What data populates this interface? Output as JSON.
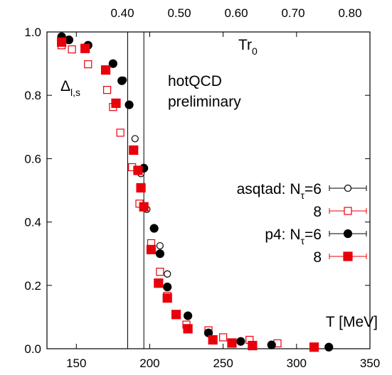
{
  "chart_data": {
    "type": "scatter",
    "xlim": [
      130,
      350
    ],
    "ylim": [
      0,
      1.0
    ],
    "x_ticks": [
      "150",
      "200",
      "250",
      "300",
      "350"
    ],
    "y_ticks": [
      "0.0",
      "0.2",
      "0.4",
      "0.6",
      "0.8",
      "1.0"
    ],
    "top_ticks": [
      "0.40",
      "0.50",
      "0.60",
      "0.70",
      "0.80"
    ],
    "top_axis_label": {
      "main": "Tr",
      "sub": "0"
    },
    "ylabel": {
      "main": "Δ",
      "sub": "l,s"
    },
    "xlabel": "T [MeV]",
    "annotation": [
      "hotQCD",
      "preliminary"
    ],
    "vertical_lines": [
      185,
      196
    ],
    "colors": {
      "black": "#000000",
      "red": "#e8000b"
    },
    "legend": {
      "position": "center-right",
      "entries": [
        {
          "prefix": "asqtad: N",
          "sub": "τ",
          "suffix": "=6"
        },
        {
          "prefix": "8",
          "sub": "",
          "suffix": ""
        },
        {
          "prefix": "p4: N",
          "sub": "τ",
          "suffix": "=6"
        },
        {
          "prefix": "8",
          "sub": "",
          "suffix": ""
        }
      ]
    },
    "series": [
      {
        "marker": "open-circle",
        "points": [
          [
            140,
            0.98
          ],
          [
            182,
            0.848
          ],
          [
            190,
            0.663
          ],
          [
            194,
            0.553
          ],
          [
            198,
            0.44
          ],
          [
            207,
            0.325
          ],
          [
            212,
            0.236
          ]
        ]
      },
      {
        "marker": "open-square",
        "points": [
          [
            140,
            0.958
          ],
          [
            147,
            0.945
          ],
          [
            158,
            0.898
          ],
          [
            171,
            0.817
          ],
          [
            175,
            0.763
          ],
          [
            180,
            0.682
          ],
          [
            188,
            0.573
          ],
          [
            193,
            0.458
          ],
          [
            201,
            0.333
          ],
          [
            207,
            0.243
          ],
          [
            212,
            0.167
          ],
          [
            225,
            0.076
          ],
          [
            240,
            0.058
          ],
          [
            250,
            0.036
          ],
          [
            268,
            0.028
          ],
          [
            287,
            0.017
          ]
        ]
      },
      {
        "marker": "filled-circle",
        "points": [
          [
            140,
            0.985
          ],
          [
            145,
            0.975
          ],
          [
            158,
            0.958
          ],
          [
            175,
            0.9
          ],
          [
            181,
            0.846
          ],
          [
            186,
            0.77
          ],
          [
            196,
            0.57
          ],
          [
            203,
            0.38
          ],
          [
            207,
            0.3
          ],
          [
            212,
            0.195
          ],
          [
            226,
            0.104
          ],
          [
            240,
            0.05
          ],
          [
            262,
            0.023
          ],
          [
            283,
            0.012
          ],
          [
            322,
            0.005
          ]
        ]
      },
      {
        "marker": "filled-square",
        "points": [
          [
            140,
            0.968
          ],
          [
            156,
            0.948
          ],
          [
            170,
            0.88
          ],
          [
            177,
            0.775
          ],
          [
            189,
            0.627
          ],
          [
            192,
            0.563
          ],
          [
            194,
            0.508
          ],
          [
            196,
            0.448
          ],
          [
            201,
            0.313
          ],
          [
            206,
            0.207
          ],
          [
            212,
            0.16
          ],
          [
            218,
            0.108
          ],
          [
            226,
            0.063
          ],
          [
            243,
            0.028
          ],
          [
            256,
            0.018
          ],
          [
            270,
            0.01
          ],
          [
            312,
            0.005
          ]
        ]
      }
    ]
  }
}
